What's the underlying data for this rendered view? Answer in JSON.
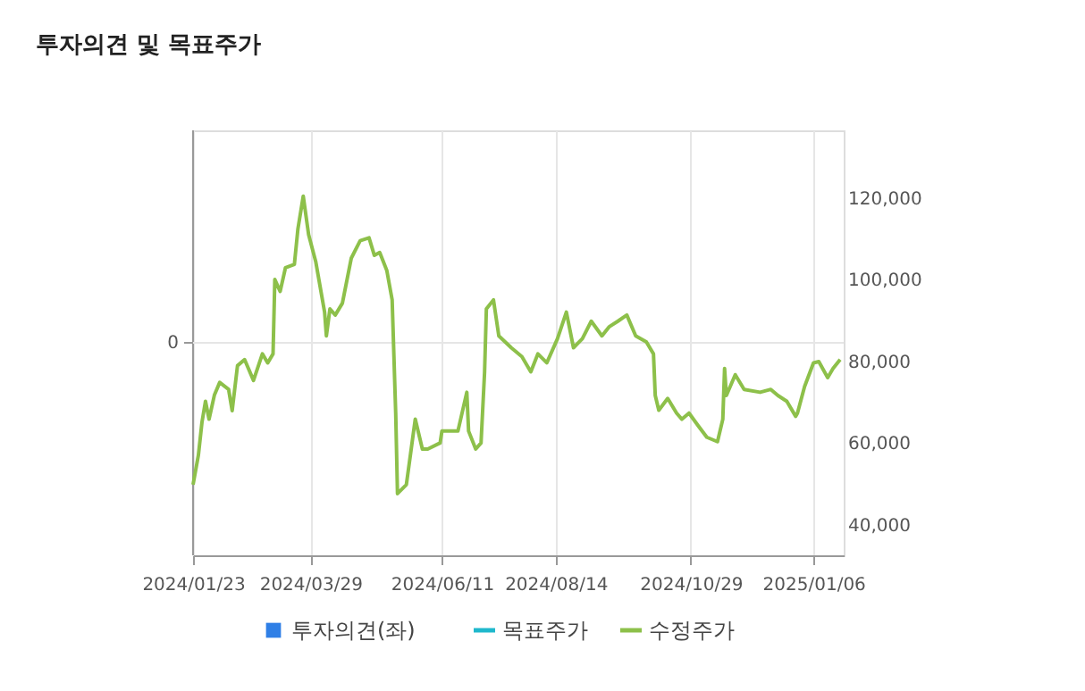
{
  "chart_data": {
    "type": "line",
    "title": "투자의견 및 목표주가",
    "xlim": [
      "2024-01-23",
      "2025-01-23"
    ],
    "xticks": [
      {
        "value": "2024-01-23",
        "label": "2024/01/23"
      },
      {
        "value": "2024-03-29",
        "label": "2024/03/29"
      },
      {
        "value": "2024-06-11",
        "label": "2024/06/11"
      },
      {
        "value": "2024-08-14",
        "label": "2024/08/14"
      },
      {
        "value": "2024-10-29",
        "label": "2024/10/29"
      },
      {
        "value": "2025-01-06",
        "label": "2025/01/06"
      }
    ],
    "y2lim": [
      32500,
      136500
    ],
    "y2ticks": [
      {
        "value": 40000,
        "label": "40,000"
      },
      {
        "value": 60000,
        "label": "60,000"
      },
      {
        "value": 80000,
        "label": "80,000"
      },
      {
        "value": 100000,
        "label": "100,000"
      },
      {
        "value": 120000,
        "label": "120,000"
      }
    ],
    "annotations": [
      "0"
    ],
    "grid": "x",
    "legend": "bottom",
    "x": [
      "2024-01-23",
      "2024-01-26",
      "2024-01-28",
      "2024-01-30",
      "2024-02-01",
      "2024-02-04",
      "2024-02-07",
      "2024-02-12",
      "2024-02-14",
      "2024-02-17",
      "2024-02-21",
      "2024-02-26",
      "2024-03-02",
      "2024-03-05",
      "2024-03-08",
      "2024-03-09",
      "2024-03-12",
      "2024-03-15",
      "2024-03-20",
      "2024-03-22",
      "2024-03-25",
      "2024-03-28",
      "2024-04-01",
      "2024-04-06",
      "2024-04-07",
      "2024-04-09",
      "2024-04-12",
      "2024-04-16",
      "2024-04-21",
      "2024-04-26",
      "2024-05-01",
      "2024-05-04",
      "2024-05-07",
      "2024-05-11",
      "2024-05-14",
      "2024-05-16",
      "2024-05-17",
      "2024-05-22",
      "2024-05-27",
      "2024-05-31",
      "2024-06-03",
      "2024-06-10",
      "2024-06-11",
      "2024-06-20",
      "2024-06-25",
      "2024-06-26",
      "2024-06-30",
      "2024-07-03",
      "2024-07-05",
      "2024-07-06",
      "2024-07-10",
      "2024-07-13",
      "2024-07-20",
      "2024-07-26",
      "2024-07-31",
      "2024-08-04",
      "2024-08-09",
      "2024-08-15",
      "2024-08-20",
      "2024-08-24",
      "2024-08-29",
      "2024-09-03",
      "2024-09-09",
      "2024-09-13",
      "2024-09-18",
      "2024-09-23",
      "2024-09-28",
      "2024-10-04",
      "2024-10-08",
      "2024-10-09",
      "2024-10-11",
      "2024-10-16",
      "2024-10-21",
      "2024-10-24",
      "2024-10-28",
      "2024-11-02",
      "2024-11-07",
      "2024-11-13",
      "2024-11-16",
      "2024-11-17",
      "2024-11-18",
      "2024-11-23",
      "2024-11-28",
      "2024-12-07",
      "2024-12-13",
      "2024-12-17",
      "2024-12-22",
      "2024-12-27",
      "2024-12-28",
      "2025-01-01",
      "2025-01-06",
      "2025-01-09",
      "2025-01-14",
      "2025-01-17",
      "2025-01-21"
    ],
    "series": [
      {
        "name": "투자의견(좌)",
        "type": "bar",
        "axis": "y",
        "color": "#2f7fe6",
        "values": [
          null,
          null,
          null,
          null,
          null,
          null,
          null,
          null,
          null,
          null,
          null,
          null,
          null,
          null,
          null,
          null,
          null,
          null,
          null,
          null,
          null,
          null,
          null,
          null,
          null,
          null,
          null,
          null,
          null,
          null,
          null,
          null,
          null,
          null,
          null,
          null,
          null,
          null,
          null,
          null,
          null,
          null,
          null,
          null,
          null,
          null,
          null,
          null,
          null,
          null,
          null,
          null,
          null,
          null,
          null,
          null,
          null,
          null,
          null,
          null,
          null,
          null,
          null,
          null,
          null,
          null,
          null,
          null,
          null,
          null,
          null,
          null,
          null,
          null,
          null,
          null,
          null,
          null,
          null,
          null,
          null,
          null,
          null,
          null,
          null,
          null,
          null,
          null,
          null,
          null,
          null,
          null,
          null,
          null,
          null
        ]
      },
      {
        "name": "목표주가",
        "axis": "y2",
        "color": "#1fb8cc",
        "values": [
          null,
          null,
          null,
          null,
          null,
          null,
          null,
          null,
          null,
          null,
          null,
          null,
          null,
          null,
          null,
          null,
          null,
          null,
          null,
          null,
          null,
          null,
          null,
          null,
          null,
          null,
          null,
          null,
          null,
          null,
          null,
          null,
          null,
          null,
          null,
          null,
          null,
          null,
          null,
          null,
          null,
          null,
          null,
          null,
          null,
          null,
          null,
          null,
          null,
          null,
          null,
          null,
          null,
          null,
          null,
          null,
          null,
          null,
          null,
          null,
          null,
          null,
          null,
          null,
          null,
          null,
          null,
          null,
          null,
          null,
          null,
          null,
          null,
          null,
          null,
          null,
          null,
          null,
          null,
          null,
          null,
          null,
          null,
          null,
          null,
          null,
          null,
          null,
          null,
          null,
          null,
          null,
          null,
          null,
          null
        ]
      },
      {
        "name": "수정주가",
        "axis": "y2",
        "color": "#8dc04a",
        "values": [
          49800,
          57000,
          65000,
          70200,
          65800,
          71700,
          74800,
          73100,
          67900,
          78900,
          80400,
          75300,
          81800,
          79600,
          81800,
          100000,
          97100,
          102900,
          103700,
          112400,
          120400,
          111000,
          104400,
          92000,
          86200,
          92800,
          91300,
          94200,
          105200,
          109500,
          110200,
          105900,
          106600,
          102200,
          95000,
          67300,
          47600,
          49800,
          65800,
          58500,
          58500,
          60000,
          62900,
          62900,
          72400,
          62900,
          58500,
          60000,
          77400,
          92800,
          95000,
          86200,
          83300,
          81100,
          77400,
          81800,
          79600,
          85500,
          92000,
          83300,
          85500,
          89800,
          86200,
          88400,
          89800,
          91300,
          86200,
          84700,
          81800,
          71600,
          68000,
          70900,
          67300,
          65800,
          67300,
          64300,
          61400,
          60300,
          65800,
          78200,
          71600,
          76700,
          73100,
          72400,
          73100,
          71600,
          70200,
          66500,
          67300,
          73800,
          79600,
          79900,
          76000,
          78200,
          80400
        ]
      }
    ]
  }
}
